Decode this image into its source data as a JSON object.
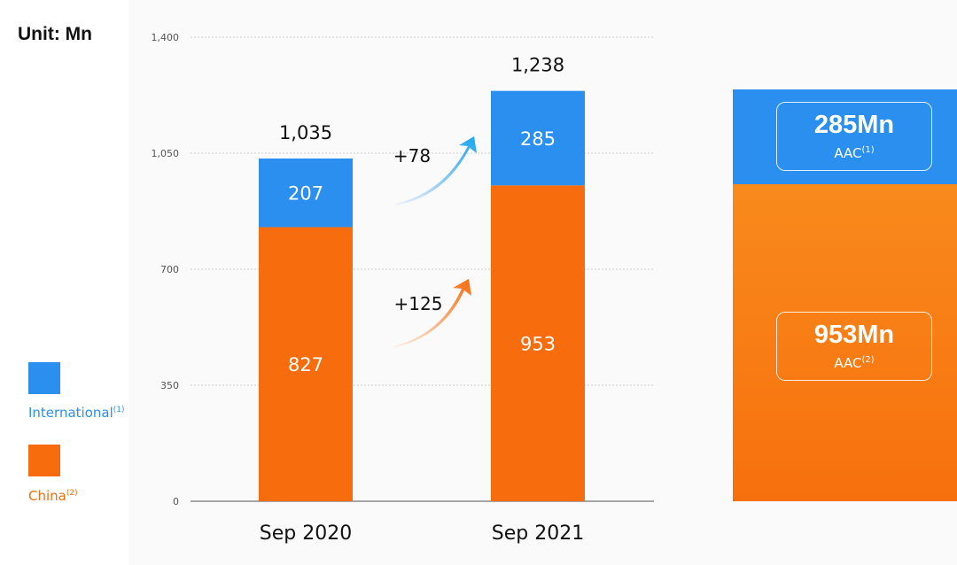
{
  "unit_label": "Unit: Mn",
  "colors": {
    "international": "#2b8ff0",
    "china": "#f76c0c",
    "china_right": "#f98a1c",
    "grid": "#cfcfcf",
    "axis_text": "#555555"
  },
  "legend": {
    "items": [
      {
        "label": "International",
        "sup": "(1)"
      },
      {
        "label": "China",
        "sup": "(2)"
      }
    ]
  },
  "chart_data": {
    "type": "bar",
    "stacked": true,
    "categories": [
      "Sep 2020",
      "Sep 2021"
    ],
    "series": [
      {
        "name": "China",
        "values": [
          827,
          953
        ]
      },
      {
        "name": "International",
        "values": [
          207,
          285
        ]
      }
    ],
    "totals": [
      "1,035",
      "1,238"
    ],
    "ylim": [
      0,
      1400
    ],
    "yticks": [
      0,
      350,
      700,
      1050,
      1400
    ],
    "ytick_labels": [
      "0",
      "350",
      "700",
      "1,050",
      "1,400"
    ],
    "grid": true,
    "annotations": [
      {
        "text": "+78",
        "series": "International"
      },
      {
        "text": "+125",
        "series": "China"
      }
    ]
  },
  "side_panel": {
    "international_value": "285Mn",
    "international_label": "AAC",
    "international_sup": "(1)",
    "china_value": "953Mn",
    "china_label": "AAC",
    "china_sup": "(2)"
  }
}
